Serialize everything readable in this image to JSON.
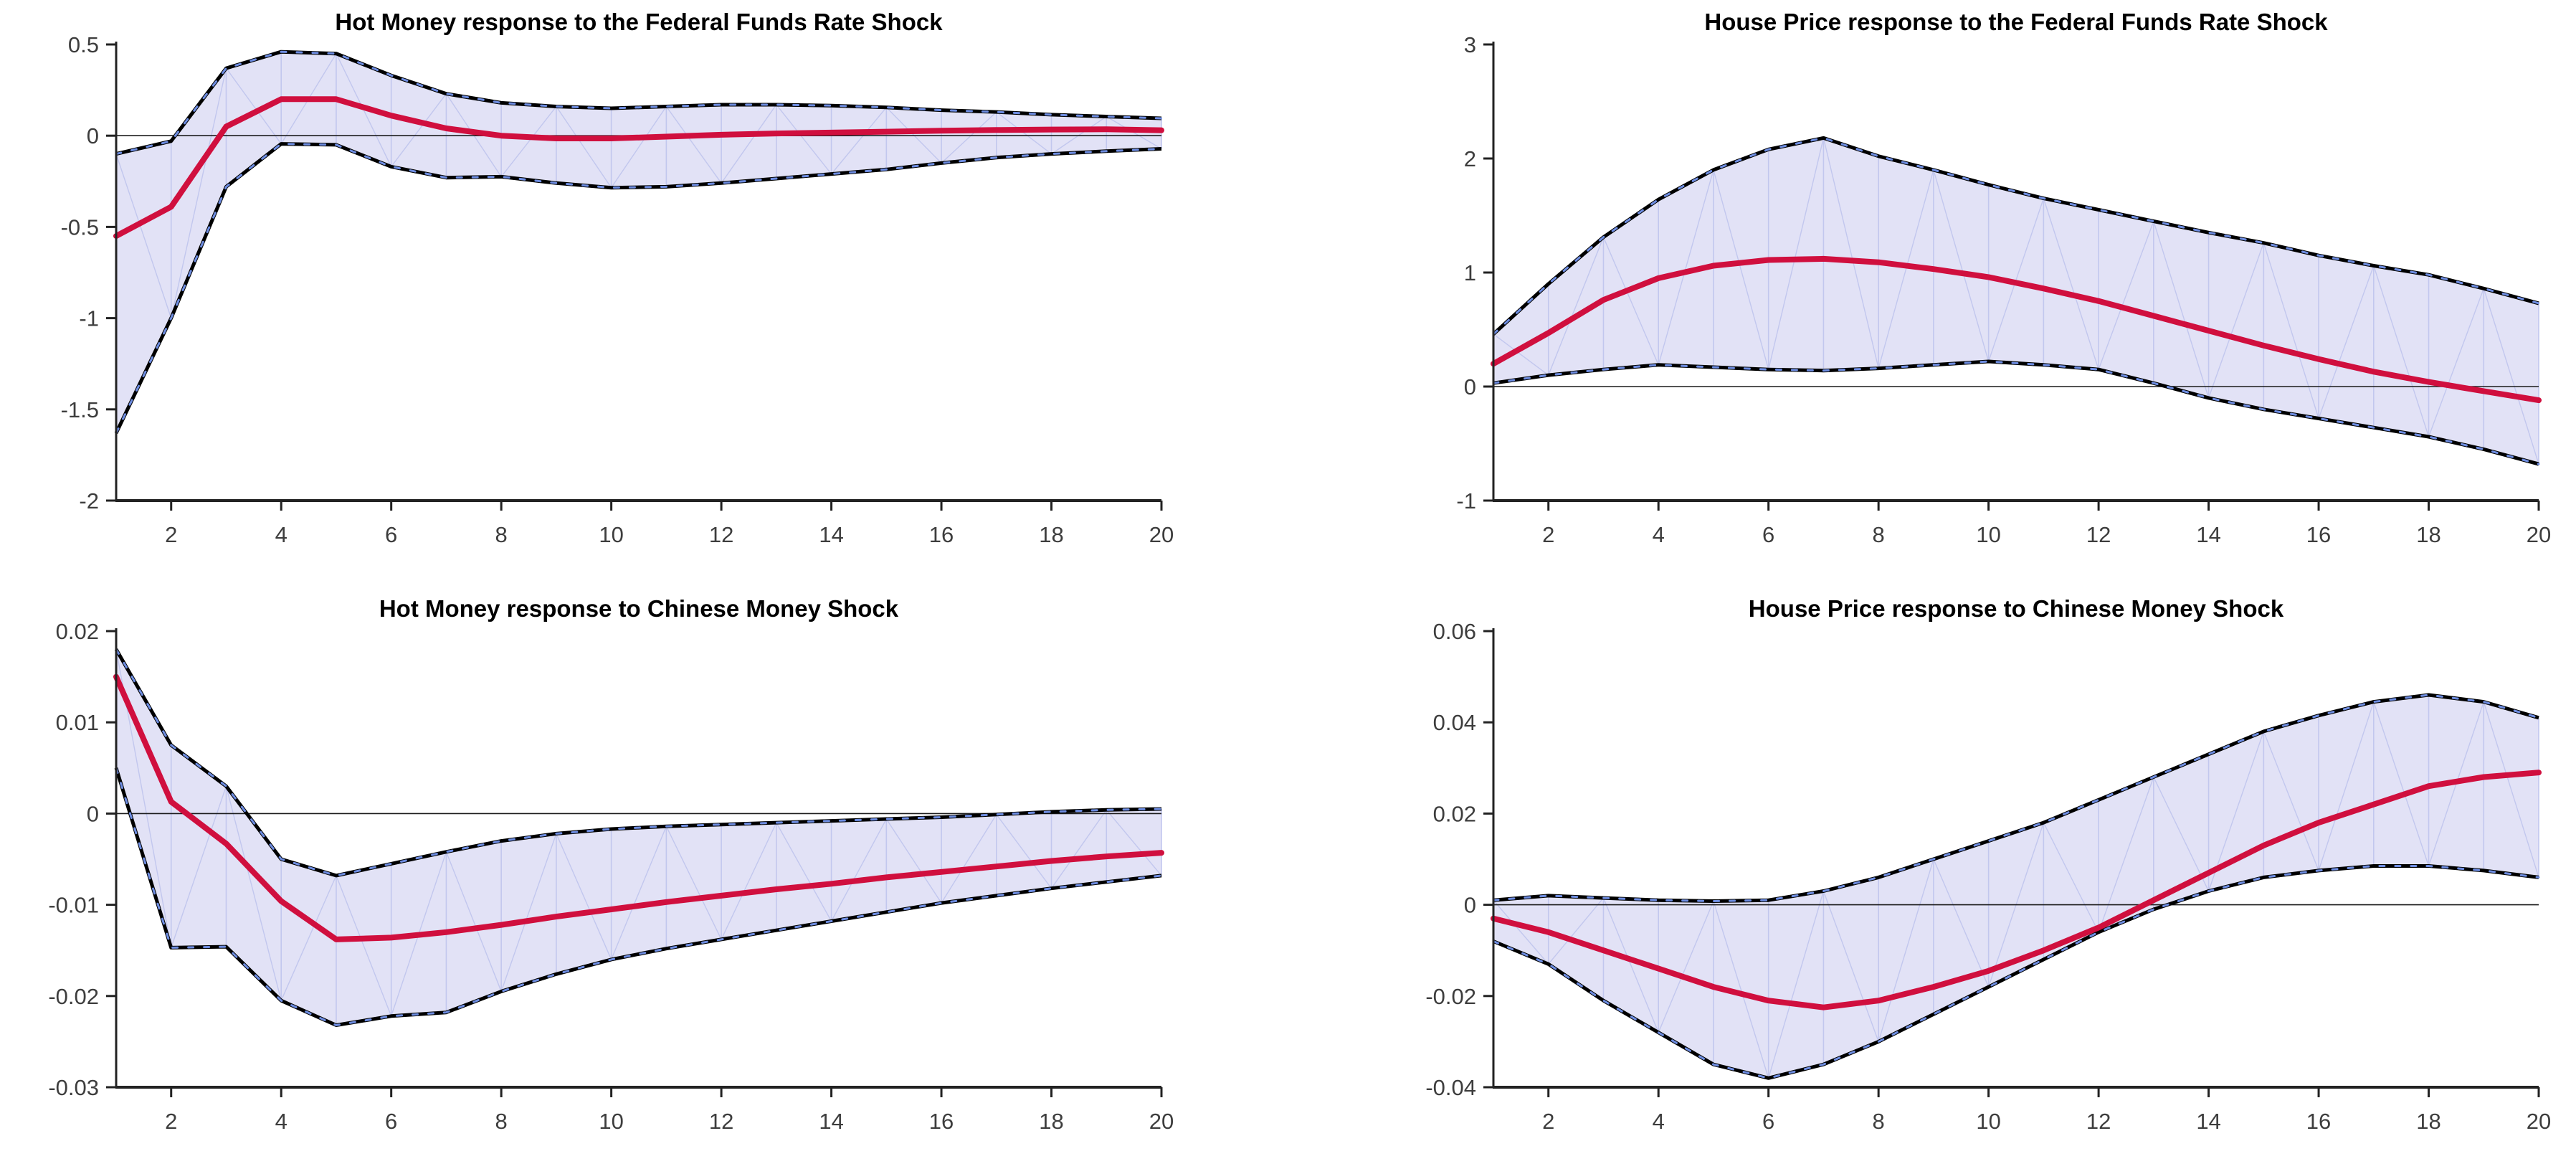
{
  "figure": {
    "background": "#ffffff",
    "kind": "2x2 impulse response function grid (MATLAB-style)"
  },
  "colors": {
    "median_line": "#d00f3e",
    "band_fill": "#e2e2f6",
    "band_edge": "#000000",
    "band_marker_blue": "#6d8ce0",
    "patch_line": "#c2c7ee",
    "zero_line": "#1a1a1a",
    "axis_spine": "#222222",
    "tick_text": "#3d3d3d",
    "title_text": "#000000"
  },
  "chart_data": [
    {
      "type": "line",
      "title": "Hot Money response to the Federal Funds Rate Shock",
      "xlabel": "",
      "ylabel": "",
      "legend_position": "none",
      "grid": false,
      "x": [
        1,
        2,
        3,
        4,
        5,
        6,
        7,
        8,
        9,
        10,
        11,
        12,
        13,
        14,
        15,
        16,
        17,
        18,
        19,
        20
      ],
      "xticks": [
        2,
        4,
        6,
        8,
        10,
        12,
        14,
        16,
        18,
        20
      ],
      "xtick_labels": [
        "2",
        "4",
        "6",
        "8",
        "10",
        "12",
        "14",
        "16",
        "18",
        "20"
      ],
      "ylim": [
        -2,
        0.5
      ],
      "yticks": [
        0.5,
        0,
        -0.5,
        -1,
        -1.5,
        -2
      ],
      "ytick_labels": [
        "0.5",
        "0",
        "-0.5",
        "-1",
        "-1.5",
        "-2"
      ],
      "series": [
        {
          "name": "upper band",
          "values": [
            -0.1,
            -0.03,
            0.37,
            0.46,
            0.45,
            0.33,
            0.23,
            0.18,
            0.16,
            0.15,
            0.16,
            0.17,
            0.17,
            0.165,
            0.155,
            0.14,
            0.13,
            0.115,
            0.105,
            0.095
          ]
        },
        {
          "name": "median",
          "values": [
            -0.55,
            -0.39,
            0.05,
            0.2,
            0.2,
            0.11,
            0.04,
            0.0,
            -0.015,
            -0.015,
            -0.005,
            0.005,
            0.012,
            0.017,
            0.022,
            0.027,
            0.031,
            0.034,
            0.035,
            0.03
          ]
        },
        {
          "name": "lower band",
          "values": [
            -1.63,
            -1.0,
            -0.28,
            -0.045,
            -0.05,
            -0.17,
            -0.23,
            -0.225,
            -0.26,
            -0.285,
            -0.28,
            -0.26,
            -0.235,
            -0.21,
            -0.185,
            -0.15,
            -0.12,
            -0.1,
            -0.085,
            -0.072
          ]
        }
      ]
    },
    {
      "type": "line",
      "title": "House Price response to the Federal Funds Rate Shock",
      "xlabel": "",
      "ylabel": "",
      "legend_position": "none",
      "grid": false,
      "x": [
        1,
        2,
        3,
        4,
        5,
        6,
        7,
        8,
        9,
        10,
        11,
        12,
        13,
        14,
        15,
        16,
        17,
        18,
        19,
        20
      ],
      "xticks": [
        2,
        4,
        6,
        8,
        10,
        12,
        14,
        16,
        18,
        20
      ],
      "xtick_labels": [
        "2",
        "4",
        "6",
        "8",
        "10",
        "12",
        "14",
        "16",
        "18",
        "20"
      ],
      "ylim": [
        -1,
        3
      ],
      "yticks": [
        3,
        2,
        1,
        0,
        -1
      ],
      "ytick_labels": [
        "3",
        "2",
        "1",
        "0",
        "-1"
      ],
      "series": [
        {
          "name": "upper band",
          "values": [
            0.46,
            0.9,
            1.31,
            1.64,
            1.9,
            2.08,
            2.18,
            2.02,
            1.9,
            1.77,
            1.65,
            1.55,
            1.45,
            1.35,
            1.26,
            1.15,
            1.06,
            0.98,
            0.86,
            0.73
          ]
        },
        {
          "name": "median",
          "values": [
            0.2,
            0.47,
            0.76,
            0.95,
            1.06,
            1.11,
            1.12,
            1.09,
            1.03,
            0.96,
            0.86,
            0.75,
            0.62,
            0.49,
            0.36,
            0.24,
            0.13,
            0.04,
            -0.04,
            -0.12
          ]
        },
        {
          "name": "lower band",
          "values": [
            0.03,
            0.1,
            0.15,
            0.19,
            0.17,
            0.15,
            0.14,
            0.16,
            0.19,
            0.22,
            0.19,
            0.15,
            0.03,
            -0.1,
            -0.2,
            -0.28,
            -0.36,
            -0.44,
            -0.55,
            -0.68
          ]
        }
      ]
    },
    {
      "type": "line",
      "title": "Hot Money response to Chinese Money Shock",
      "xlabel": "",
      "ylabel": "",
      "legend_position": "none",
      "grid": false,
      "x": [
        1,
        2,
        3,
        4,
        5,
        6,
        7,
        8,
        9,
        10,
        11,
        12,
        13,
        14,
        15,
        16,
        17,
        18,
        19,
        20
      ],
      "xticks": [
        2,
        4,
        6,
        8,
        10,
        12,
        14,
        16,
        18,
        20
      ],
      "xtick_labels": [
        "2",
        "4",
        "6",
        "8",
        "10",
        "12",
        "14",
        "16",
        "18",
        "20"
      ],
      "ylim": [
        -0.03,
        0.02
      ],
      "yticks": [
        0.02,
        0.01,
        0,
        -0.01,
        -0.02,
        -0.03
      ],
      "ytick_labels": [
        "0.02",
        "0.01",
        "0",
        "-0.01",
        "-0.02",
        "-0.03"
      ],
      "series": [
        {
          "name": "upper band",
          "values": [
            0.018,
            0.0075,
            0.003,
            -0.005,
            -0.0068,
            -0.0055,
            -0.0042,
            -0.003,
            -0.0022,
            -0.0017,
            -0.0014,
            -0.0012,
            -0.001,
            -0.0008,
            -0.0006,
            -0.0004,
            -0.0001,
            0.0002,
            0.0004,
            0.0005
          ]
        },
        {
          "name": "median",
          "values": [
            0.015,
            0.0013,
            -0.0033,
            -0.0096,
            -0.0138,
            -0.0136,
            -0.013,
            -0.0122,
            -0.0113,
            -0.0105,
            -0.0097,
            -0.009,
            -0.0083,
            -0.0077,
            -0.007,
            -0.0064,
            -0.0058,
            -0.0052,
            -0.0047,
            -0.0043
          ]
        },
        {
          "name": "lower band",
          "values": [
            0.005,
            -0.0147,
            -0.0146,
            -0.0205,
            -0.0232,
            -0.0222,
            -0.0218,
            -0.0195,
            -0.0176,
            -0.016,
            -0.0148,
            -0.0138,
            -0.0128,
            -0.0118,
            -0.0108,
            -0.0098,
            -0.009,
            -0.0082,
            -0.0075,
            -0.0068
          ]
        }
      ]
    },
    {
      "type": "line",
      "title": "House Price response to Chinese Money Shock",
      "xlabel": "",
      "ylabel": "",
      "legend_position": "none",
      "grid": false,
      "x": [
        1,
        2,
        3,
        4,
        5,
        6,
        7,
        8,
        9,
        10,
        11,
        12,
        13,
        14,
        15,
        16,
        17,
        18,
        19,
        20
      ],
      "xticks": [
        2,
        4,
        6,
        8,
        10,
        12,
        14,
        16,
        18,
        20
      ],
      "xtick_labels": [
        "2",
        "4",
        "6",
        "8",
        "10",
        "12",
        "14",
        "16",
        "18",
        "20"
      ],
      "ylim": [
        -0.04,
        0.06
      ],
      "yticks": [
        0.06,
        0.04,
        0.02,
        0,
        -0.02,
        -0.04
      ],
      "ytick_labels": [
        "0.06",
        "0.04",
        "0.02",
        "0",
        "-0.02",
        "-0.04"
      ],
      "series": [
        {
          "name": "upper band",
          "values": [
            0.001,
            0.002,
            0.0015,
            0.001,
            0.0008,
            0.001,
            0.003,
            0.006,
            0.01,
            0.014,
            0.018,
            0.023,
            0.028,
            0.033,
            0.038,
            0.0415,
            0.0445,
            0.046,
            0.0445,
            0.041
          ]
        },
        {
          "name": "median",
          "values": [
            -0.003,
            -0.006,
            -0.01,
            -0.014,
            -0.018,
            -0.021,
            -0.0225,
            -0.021,
            -0.018,
            -0.0145,
            -0.01,
            -0.005,
            0.001,
            0.007,
            0.013,
            0.018,
            0.022,
            0.026,
            0.028,
            0.029
          ]
        },
        {
          "name": "lower band",
          "values": [
            -0.008,
            -0.013,
            -0.021,
            -0.028,
            -0.035,
            -0.038,
            -0.035,
            -0.03,
            -0.024,
            -0.018,
            -0.012,
            -0.006,
            -0.001,
            0.003,
            0.006,
            0.0075,
            0.0085,
            0.0085,
            0.0075,
            0.006
          ]
        }
      ]
    }
  ]
}
